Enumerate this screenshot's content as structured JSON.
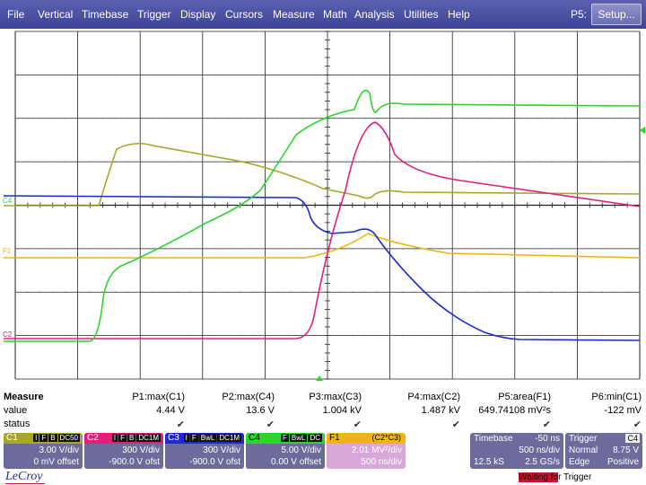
{
  "menu": {
    "items": [
      "File",
      "Vertical",
      "Timebase",
      "Trigger",
      "Display",
      "Cursors",
      "Measure",
      "Math",
      "Analysis",
      "Utilities",
      "Help"
    ],
    "p5_label": "P5:",
    "setup_label": "Setup..."
  },
  "markers": {
    "c4": "C4",
    "f1": "F1",
    "c2": "C2"
  },
  "measure": {
    "row_labels": [
      "Measure",
      "value",
      "status"
    ],
    "params": [
      {
        "name": "P1:max(C1)",
        "value": "4.44 V",
        "status": "✔"
      },
      {
        "name": "P2:max(C4)",
        "value": "13.6 V",
        "status": "✔"
      },
      {
        "name": "P3:max(C3)",
        "value": "1.004 kV",
        "status": "✔"
      },
      {
        "name": "P4:max(C2)",
        "value": "1.487 kV",
        "status": "✔"
      },
      {
        "name": "P5:area(F1)",
        "value": "649.74108 mV²s",
        "status": "✔"
      },
      {
        "name": "P6:min(C1)",
        "value": "-122 mV",
        "status": "✔"
      }
    ]
  },
  "channels": [
    {
      "name": "C1",
      "tags": [
        "I",
        "F",
        "B",
        "DC50"
      ],
      "line1": "3.00 V/div",
      "line2": "0 mV offset",
      "color": "#a8a72a"
    },
    {
      "name": "C2",
      "tags": [
        "I",
        "F",
        "B",
        "DC1M"
      ],
      "line1": "300 V/div",
      "line2": "-900.0 V ofst",
      "color": "#e0207e"
    },
    {
      "name": "C3",
      "tags": [
        "I",
        "F",
        "BwL",
        "DC1M"
      ],
      "line1": "300 V/div",
      "line2": "-900.0 V ofst",
      "color": "#1c2bd0"
    },
    {
      "name": "C4",
      "tags": [
        "F",
        "BwL",
        "DC"
      ],
      "line1": "5.00 V/div",
      "line2": "0.00 V offset",
      "color": "#2dd42d"
    },
    {
      "name": "F1",
      "tags": [
        "(C2*C3)"
      ],
      "line1": "2.01 MV²/div",
      "line2": "500 ns/div",
      "color": "#f0b417"
    }
  ],
  "timebase": {
    "label": "Timebase",
    "delay": "-50 ns",
    "div": "500 ns/div",
    "samples": "12.5 kS",
    "rate": "2.5 GS/s"
  },
  "trigger": {
    "label": "Trigger",
    "channel": "C4",
    "mode": "Normal",
    "level": "8.75 V",
    "type": "Edge",
    "slope": "Positive"
  },
  "brand": "LeCroy",
  "status_text": {
    "highlight": "Waiting fo",
    "rest": "r Trigger"
  },
  "colors": {
    "c1": "#a8a72a",
    "c2": "#e0207e",
    "c3": "#1c2bd0",
    "c4": "#2dd42d",
    "f1": "#f0b417",
    "menu": "#464a9e"
  }
}
